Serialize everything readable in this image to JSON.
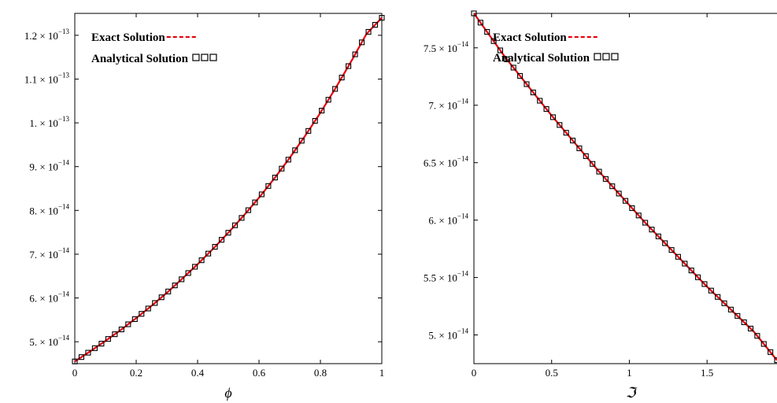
{
  "chart_data": [
    {
      "type": "line",
      "xlabel": "ϕ",
      "ylabel": "",
      "xlim": [
        0,
        1
      ],
      "ylim": [
        4.5e-14,
        1.25e-13
      ],
      "x_ticks": [
        {
          "value": 0,
          "label": "0"
        },
        {
          "value": 0.2,
          "label": "0.2"
        },
        {
          "value": 0.4,
          "label": "0.4"
        },
        {
          "value": 0.6,
          "label": "0.6"
        },
        {
          "value": 0.8,
          "label": "0.8"
        },
        {
          "value": 1,
          "label": "1"
        }
      ],
      "y_ticks": [
        {
          "value": 5e-14,
          "mant": "5. × 10",
          "exp": "−14"
        },
        {
          "value": 6e-14,
          "mant": "6. × 10",
          "exp": "−14"
        },
        {
          "value": 7e-14,
          "mant": "7. × 10",
          "exp": "−14"
        },
        {
          "value": 8e-14,
          "mant": "8. × 10",
          "exp": "−14"
        },
        {
          "value": 9e-14,
          "mant": "9. × 10",
          "exp": "−14"
        },
        {
          "value": 1e-13,
          "mant": "1. × 10",
          "exp": "−13"
        },
        {
          "value": 1.1e-13,
          "mant": "1.1 × 10",
          "exp": "−13"
        },
        {
          "value": 1.2e-13,
          "mant": "1.2 × 10",
          "exp": "−13"
        }
      ],
      "legend": [
        {
          "label": "Exact Solution",
          "marker": "-----",
          "style": "dashed-line",
          "color": "#e8000b"
        },
        {
          "label": "Analytical Solution",
          "marker": "□□□",
          "style": "squares",
          "color": "#000000"
        }
      ],
      "legend_position": "top-left",
      "grid": false,
      "series": [
        {
          "name": "Exact Solution",
          "color": "#e8000b",
          "x": [
            0,
            0.05,
            0.1,
            0.15,
            0.2,
            0.25,
            0.3,
            0.35,
            0.4,
            0.45,
            0.5,
            0.55,
            0.6,
            0.65,
            0.7,
            0.75,
            0.8,
            0.85,
            0.9,
            0.95,
            1
          ],
          "y": [
            4.55e-14,
            4.78e-14,
            5.02e-14,
            5.27e-14,
            5.54e-14,
            5.82e-14,
            6.12e-14,
            6.44e-14,
            6.77e-14,
            7.12e-14,
            7.49e-14,
            7.88e-14,
            8.29e-14,
            8.73e-14,
            9.2e-14,
            9.7e-14,
            1.023e-13,
            1.08e-13,
            1.14e-13,
            1.203e-13,
            1.24e-13
          ]
        },
        {
          "name": "Analytical Solution",
          "color": "#000000",
          "x": [
            0,
            0.05,
            0.1,
            0.15,
            0.2,
            0.25,
            0.3,
            0.35,
            0.4,
            0.45,
            0.5,
            0.55,
            0.6,
            0.65,
            0.7,
            0.75,
            0.8,
            0.85,
            0.9,
            0.95,
            1
          ],
          "y": [
            4.55e-14,
            4.78e-14,
            5.02e-14,
            5.27e-14,
            5.54e-14,
            5.82e-14,
            6.12e-14,
            6.44e-14,
            6.77e-14,
            7.12e-14,
            7.49e-14,
            7.88e-14,
            8.29e-14,
            8.73e-14,
            9.2e-14,
            9.7e-14,
            1.023e-13,
            1.08e-13,
            1.14e-13,
            1.203e-13,
            1.24e-13
          ]
        }
      ]
    },
    {
      "type": "line",
      "xlabel": "ℑ",
      "ylabel": "",
      "xlim": [
        0,
        1.95
      ],
      "ylim": [
        4.75e-14,
        7.8e-14
      ],
      "x_ticks": [
        {
          "value": 0,
          "label": "0"
        },
        {
          "value": 0.5,
          "label": "0.5"
        },
        {
          "value": 1,
          "label": "1"
        },
        {
          "value": 1.5,
          "label": "1.5"
        }
      ],
      "y_ticks": [
        {
          "value": 5e-14,
          "mant": "5. × 10",
          "exp": "−14"
        },
        {
          "value": 5.5e-14,
          "mant": "5.5 × 10",
          "exp": "−14"
        },
        {
          "value": 6e-14,
          "mant": "6. × 10",
          "exp": "−14"
        },
        {
          "value": 6.5e-14,
          "mant": "6.5 × 10",
          "exp": "−14"
        },
        {
          "value": 7e-14,
          "mant": "7. × 10",
          "exp": "−14"
        },
        {
          "value": 7.5e-14,
          "mant": "7.5 × 10",
          "exp": "−14"
        }
      ],
      "legend": [
        {
          "label": "Exact Solution",
          "marker": "-----",
          "style": "dashed-line",
          "color": "#e8000b"
        },
        {
          "label": "Analytical Solution",
          "marker": "□□□",
          "style": "squares",
          "color": "#000000"
        }
      ],
      "legend_position": "top-left",
      "grid": false,
      "series": [
        {
          "name": "Exact Solution",
          "color": "#e8000b",
          "x": [
            0,
            0.1,
            0.2,
            0.3,
            0.4,
            0.5,
            0.6,
            0.7,
            0.8,
            0.9,
            1,
            1.1,
            1.2,
            1.3,
            1.4,
            1.5,
            1.6,
            1.7,
            1.8,
            1.95
          ],
          "y": [
            7.8e-14,
            7.61e-14,
            7.42e-14,
            7.25e-14,
            7.08e-14,
            6.91e-14,
            6.75e-14,
            6.59e-14,
            6.43e-14,
            6.28e-14,
            6.13e-14,
            5.98e-14,
            5.84e-14,
            5.7e-14,
            5.56e-14,
            5.42e-14,
            5.29e-14,
            5.16e-14,
            5.03e-14,
            4.78e-14
          ]
        },
        {
          "name": "Analytical Solution",
          "color": "#000000",
          "x": [
            0,
            0.1,
            0.2,
            0.3,
            0.4,
            0.5,
            0.6,
            0.7,
            0.8,
            0.9,
            1,
            1.1,
            1.2,
            1.3,
            1.4,
            1.5,
            1.6,
            1.7,
            1.8,
            1.95
          ],
          "y": [
            7.8e-14,
            7.61e-14,
            7.42e-14,
            7.25e-14,
            7.08e-14,
            6.91e-14,
            6.75e-14,
            6.59e-14,
            6.43e-14,
            6.28e-14,
            6.13e-14,
            5.98e-14,
            5.84e-14,
            5.7e-14,
            5.56e-14,
            5.42e-14,
            5.29e-14,
            5.16e-14,
            5.03e-14,
            4.78e-14
          ]
        }
      ]
    }
  ]
}
